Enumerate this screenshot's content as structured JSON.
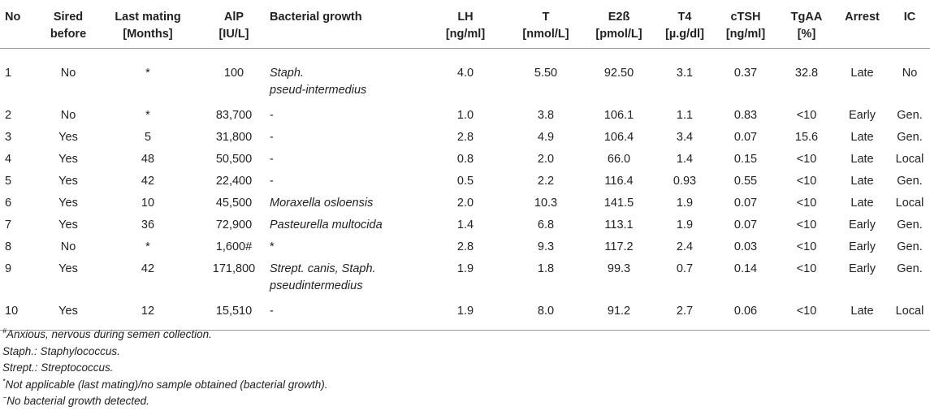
{
  "table": {
    "headers": [
      {
        "line1": "No",
        "line2": ""
      },
      {
        "line1": "Sired",
        "line2": "before"
      },
      {
        "line1": "Last mating",
        "line2": "[Months]"
      },
      {
        "line1": "AlP",
        "line2": "[IU/L]"
      },
      {
        "line1": "Bacterial growth",
        "line2": ""
      },
      {
        "line1": "LH",
        "line2": "[ng/ml]"
      },
      {
        "line1": "T",
        "line2": "[nmol/L]"
      },
      {
        "line1": "E2ß",
        "line2": "[pmol/L]"
      },
      {
        "line1": "T4",
        "line2": "[µ.g/dl]"
      },
      {
        "line1": "cTSH",
        "line2": "[ng/ml]"
      },
      {
        "line1": "TgAA",
        "line2": "[%]"
      },
      {
        "line1": "Arrest",
        "line2": ""
      },
      {
        "line1": "IC",
        "line2": ""
      }
    ],
    "rows": [
      {
        "no": "1",
        "sired": "No",
        "last_mating": "*",
        "alp": "100",
        "bacterial_line1": "Staph.",
        "bacterial_line2": "pseud-intermedius",
        "lh": "4.0",
        "t": "5.50",
        "e2b": "92.50",
        "t4": "3.1",
        "ctsh": "0.37",
        "tgaa": "32.8",
        "arrest": "Late",
        "ic": "No"
      },
      {
        "no": "2",
        "sired": "No",
        "last_mating": "*",
        "alp": "83,700",
        "bacterial_line1": "-",
        "bacterial_line2": "",
        "lh": "1.0",
        "t": "3.8",
        "e2b": "106.1",
        "t4": "1.1",
        "ctsh": "0.83",
        "tgaa": "<10",
        "arrest": "Early",
        "ic": "Gen."
      },
      {
        "no": "3",
        "sired": "Yes",
        "last_mating": "5",
        "alp": "31,800",
        "bacterial_line1": "-",
        "bacterial_line2": "",
        "lh": "2.8",
        "t": "4.9",
        "e2b": "106.4",
        "t4": "3.4",
        "ctsh": "0.07",
        "tgaa": "15.6",
        "arrest": "Late",
        "ic": "Gen."
      },
      {
        "no": "4",
        "sired": "Yes",
        "last_mating": "48",
        "alp": "50,500",
        "bacterial_line1": "-",
        "bacterial_line2": "",
        "lh": "0.8",
        "t": "2.0",
        "e2b": "66.0",
        "t4": "1.4",
        "ctsh": "0.15",
        "tgaa": "<10",
        "arrest": "Late",
        "ic": "Local"
      },
      {
        "no": "5",
        "sired": "Yes",
        "last_mating": "42",
        "alp": "22,400",
        "bacterial_line1": "-",
        "bacterial_line2": "",
        "lh": "0.5",
        "t": "2.2",
        "e2b": "116.4",
        "t4": "0.93",
        "ctsh": "0.55",
        "tgaa": "<10",
        "arrest": "Late",
        "ic": "Gen."
      },
      {
        "no": "6",
        "sired": "Yes",
        "last_mating": "10",
        "alp": "45,500",
        "bacterial_line1": "Moraxella osloensis",
        "bacterial_line2": "",
        "lh": "2.0",
        "t": "10.3",
        "e2b": "141.5",
        "t4": "1.9",
        "ctsh": "0.07",
        "tgaa": "<10",
        "arrest": "Late",
        "ic": "Local"
      },
      {
        "no": "7",
        "sired": "Yes",
        "last_mating": "36",
        "alp": "72,900",
        "bacterial_line1": "Pasteurella multocida",
        "bacterial_line2": "",
        "lh": "1.4",
        "t": "6.8",
        "e2b": "113.1",
        "t4": "1.9",
        "ctsh": "0.07",
        "tgaa": "<10",
        "arrest": "Early",
        "ic": "Gen."
      },
      {
        "no": "8",
        "sired": "No",
        "last_mating": "*",
        "alp": "1,600#",
        "bacterial_line1": "*",
        "bacterial_line2": "",
        "lh": "2.8",
        "t": "9.3",
        "e2b": "117.2",
        "t4": "2.4",
        "ctsh": "0.03",
        "tgaa": "<10",
        "arrest": "Early",
        "ic": "Gen."
      },
      {
        "no": "9",
        "sired": "Yes",
        "last_mating": "42",
        "alp": "171,800",
        "bacterial_line1": "Strept. canis, Staph.",
        "bacterial_line2": "pseudintermedius",
        "lh": "1.9",
        "t": "1.8",
        "e2b": "99.3",
        "t4": "0.7",
        "ctsh": "0.14",
        "tgaa": "<10",
        "arrest": "Early",
        "ic": "Gen."
      },
      {
        "no": "10",
        "sired": "Yes",
        "last_mating": "12",
        "alp": "15,510",
        "bacterial_line1": "-",
        "bacterial_line2": "",
        "lh": "1.9",
        "t": "8.0",
        "e2b": "91.2",
        "t4": "2.7",
        "ctsh": "0.06",
        "tgaa": "<10",
        "arrest": "Late",
        "ic": "Local"
      }
    ]
  },
  "footnotes": {
    "anxious": {
      "mark": "#",
      "text": "Anxious, nervous during semen collection."
    },
    "staph": "Staph.: Staphylococcus.",
    "strept": "Strept.: Streptococcus.",
    "not_applicable": {
      "mark": "*",
      "text": "Not applicable (last mating)/no sample obtained (bacterial growth)."
    },
    "no_growth": {
      "mark": "−",
      "text": "No bacterial growth detected."
    }
  }
}
